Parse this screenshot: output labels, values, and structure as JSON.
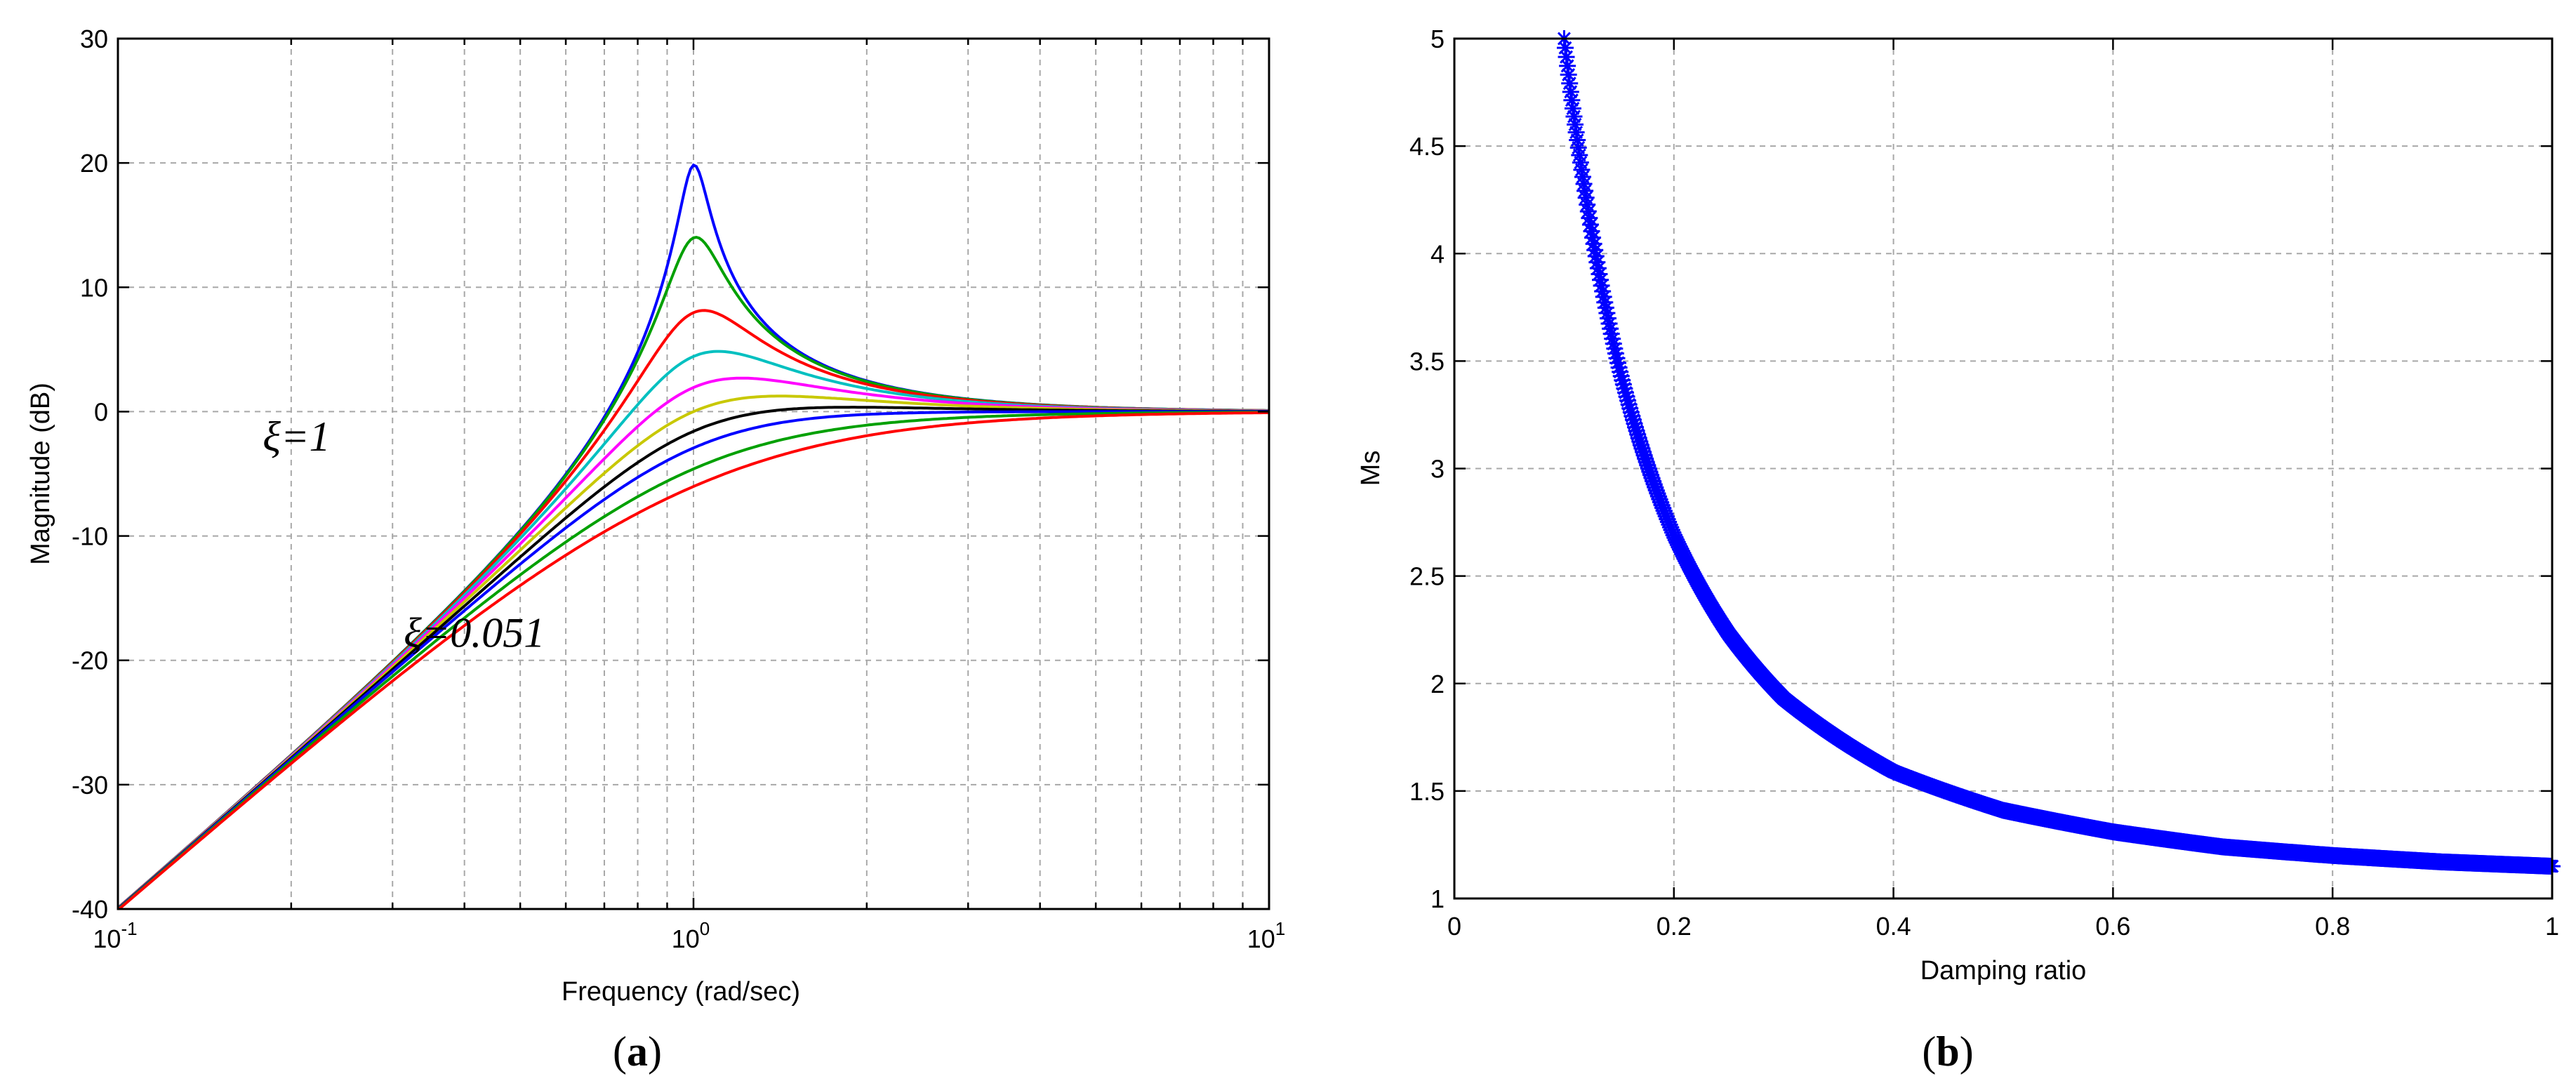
{
  "chart_data": [
    {
      "type": "line",
      "xlabel": "Frequency  (rad/sec)",
      "ylabel": "Magnitude (dB)",
      "xscale": "log",
      "xlim": [
        0.1,
        10
      ],
      "ylim": [
        -40,
        30
      ],
      "yticks": [
        "-40",
        "-30",
        "-20",
        "-10",
        "0",
        "10",
        "20",
        "30"
      ],
      "xticks": [
        {
          "base": "10",
          "exp": "-1"
        },
        {
          "base": "10",
          "exp": "0"
        },
        {
          "base": "10",
          "exp": "1"
        }
      ],
      "grid": true,
      "caption_label": "a",
      "annotations": [
        {
          "text": "ξ=1",
          "at_x": 0.25,
          "at_y": -2
        },
        {
          "text": "ξ=0.051",
          "at_x": 0.55,
          "at_y": -17.8
        }
      ],
      "series": [
        {
          "zeta": 0.051,
          "color": "#0000ff"
        },
        {
          "zeta": 0.1,
          "color": "#00a000"
        },
        {
          "zeta": 0.2,
          "color": "#ff0000"
        },
        {
          "zeta": 0.3,
          "color": "#00c0c0"
        },
        {
          "zeta": 0.4,
          "color": "#ff00ff"
        },
        {
          "zeta": 0.5,
          "color": "#c8c800"
        },
        {
          "zeta": 0.6,
          "color": "#000000"
        },
        {
          "zeta": 0.7,
          "color": "#0000ff"
        },
        {
          "zeta": 0.85,
          "color": "#00a000"
        },
        {
          "zeta": 1.0,
          "color": "#ff0000"
        }
      ]
    },
    {
      "type": "scatter",
      "xlabel": "Damping ratio",
      "ylabel": "Ms",
      "xlim": [
        0,
        1
      ],
      "ylim": [
        1,
        5
      ],
      "xticks": [
        "0",
        "0.2",
        "0.4",
        "0.6",
        "0.8",
        "1"
      ],
      "yticks": [
        "1",
        "1.5",
        "2",
        "2.5",
        "3",
        "3.5",
        "4",
        "4.5",
        "5"
      ],
      "grid": true,
      "marker": "*",
      "color": "#0000ff",
      "caption_label": "b",
      "x_range": [
        0.1,
        1.0
      ],
      "points": [
        {
          "x": 0.1,
          "y": 5.0
        },
        {
          "x": 0.12,
          "y": 4.26
        },
        {
          "x": 0.15,
          "y": 3.47
        },
        {
          "x": 0.2,
          "y": 2.69
        },
        {
          "x": 0.25,
          "y": 2.23
        },
        {
          "x": 0.3,
          "y": 1.93
        },
        {
          "x": 0.4,
          "y": 1.59
        },
        {
          "x": 0.5,
          "y": 1.41
        },
        {
          "x": 0.6,
          "y": 1.31
        },
        {
          "x": 0.7,
          "y": 1.24
        },
        {
          "x": 0.8,
          "y": 1.2
        },
        {
          "x": 0.9,
          "y": 1.17
        },
        {
          "x": 1.0,
          "y": 1.15
        }
      ]
    }
  ]
}
